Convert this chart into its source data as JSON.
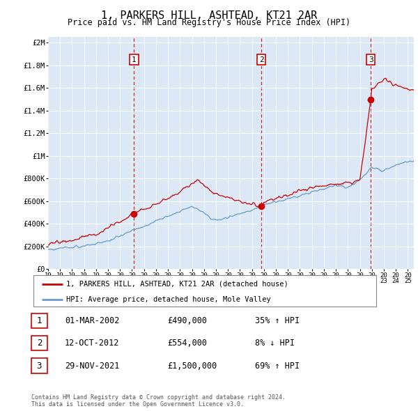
{
  "title": "1, PARKERS HILL, ASHTEAD, KT21 2AR",
  "subtitle": "Price paid vs. HM Land Registry's House Price Index (HPI)",
  "ylabel_ticks": [
    "£0",
    "£200K",
    "£400K",
    "£600K",
    "£800K",
    "£1M",
    "£1.2M",
    "£1.4M",
    "£1.6M",
    "£1.8M",
    "£2M"
  ],
  "ytick_values": [
    0,
    200000,
    400000,
    600000,
    800000,
    1000000,
    1200000,
    1400000,
    1600000,
    1800000,
    2000000
  ],
  "ylim": [
    0,
    2050000
  ],
  "xlim_start": 1995.0,
  "xlim_end": 2025.5,
  "sale_marker_color": "#cc0000",
  "hpi_line_color": "#6699cc",
  "red_line_color": "#cc0000",
  "vline_color": "#cc0000",
  "legend_label_red": "1, PARKERS HILL, ASHTEAD, KT21 2AR (detached house)",
  "legend_label_blue": "HPI: Average price, detached house, Mole Valley",
  "transactions": [
    {
      "id": 1,
      "date": "01-MAR-2002",
      "price": 490000,
      "pct": "35%",
      "direction": "↑",
      "x_year": 2002.17
    },
    {
      "id": 2,
      "date": "12-OCT-2012",
      "price": 554000,
      "pct": "8%",
      "direction": "↓",
      "x_year": 2012.78
    },
    {
      "id": 3,
      "date": "29-NOV-2021",
      "price": 1500000,
      "pct": "69%",
      "direction": "↑",
      "x_year": 2021.91
    }
  ],
  "footer": "Contains HM Land Registry data © Crown copyright and database right 2024.\nThis data is licensed under the Open Government Licence v3.0.",
  "background_color": "#ffffff",
  "plot_bg_color": "#dce8f5"
}
